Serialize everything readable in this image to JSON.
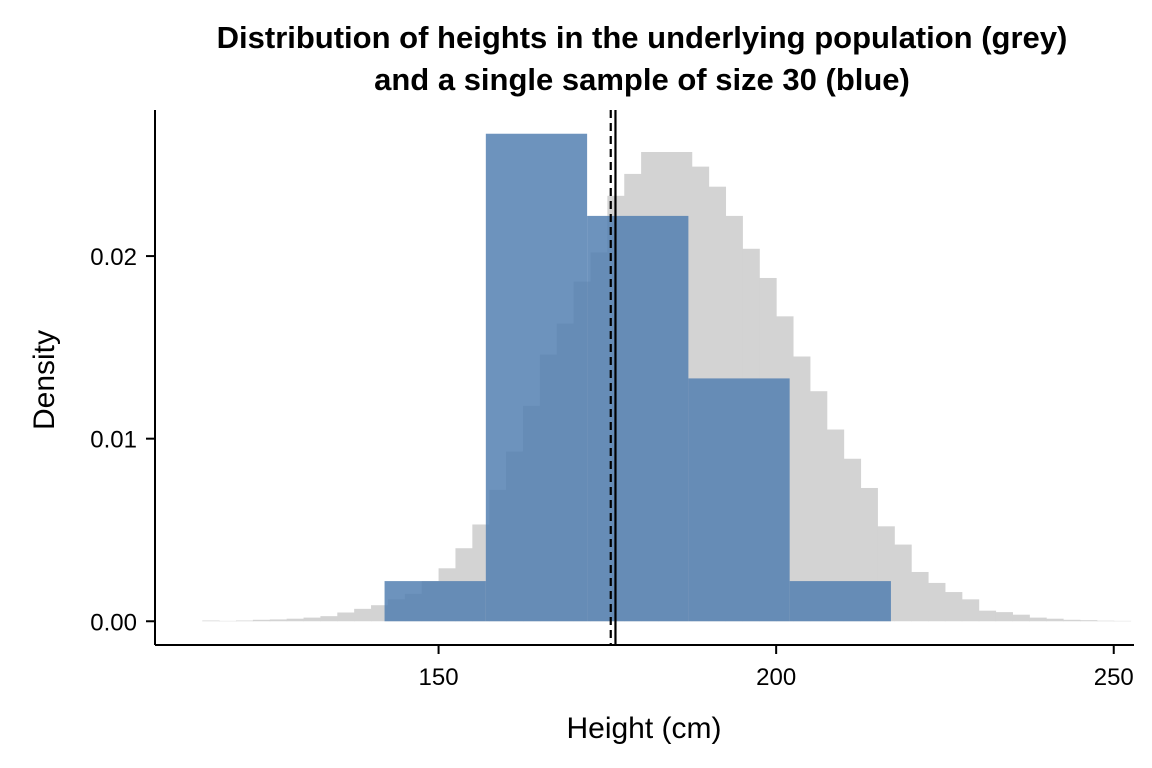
{
  "chart_data": {
    "type": "bar",
    "title_line1": "Distribution of heights in the underlying population (grey)",
    "title_line2": "and a single sample of size 30 (blue)",
    "xlabel": "Height (cm)",
    "ylabel": "Density",
    "xlim": [
      108,
      253
    ],
    "ylim": [
      -0.0013,
      0.028
    ],
    "x_ticks": [
      150,
      200,
      250
    ],
    "x_tick_labels": [
      "150",
      "200",
      "250"
    ],
    "y_ticks": [
      0.0,
      0.01,
      0.02
    ],
    "y_tick_labels": [
      "0.00",
      "0.01",
      "0.02"
    ],
    "grid": false,
    "colors": {
      "population": "#d3d3d3",
      "sample": "#4f7db0",
      "lines": "#000000"
    },
    "series": [
      {
        "name": "population",
        "bin_width": 2.5,
        "bin_start": 115,
        "values": [
          4e-05,
          2e-05,
          4e-05,
          8e-05,
          0.0001,
          0.00014,
          0.0002,
          0.00028,
          0.00048,
          0.00068,
          0.00088,
          0.0012,
          0.0015,
          0.0022,
          0.0029,
          0.004,
          0.0053,
          0.0072,
          0.0093,
          0.0118,
          0.0146,
          0.0163,
          0.0186,
          0.0202,
          0.0233,
          0.0245,
          0.0257,
          0.0257,
          0.0257,
          0.0249,
          0.0238,
          0.0222,
          0.0204,
          0.0188,
          0.0167,
          0.0145,
          0.0126,
          0.0105,
          0.0089,
          0.0073,
          0.0052,
          0.0042,
          0.0027,
          0.0021,
          0.0016,
          0.0012,
          0.00058,
          0.0005,
          0.00036,
          0.0002,
          0.00014,
          8e-05,
          6e-05,
          3e-05,
          2e-05
        ]
      },
      {
        "name": "sample",
        "bin_edges": [
          142,
          157,
          172,
          187,
          202,
          217
        ],
        "values": [
          0.0022,
          0.0267,
          0.0222,
          0.0133,
          0.0022
        ]
      }
    ],
    "reference_lines": [
      {
        "x": 175.5,
        "style": "dashed"
      },
      {
        "x": 176.2,
        "style": "solid"
      }
    ]
  }
}
